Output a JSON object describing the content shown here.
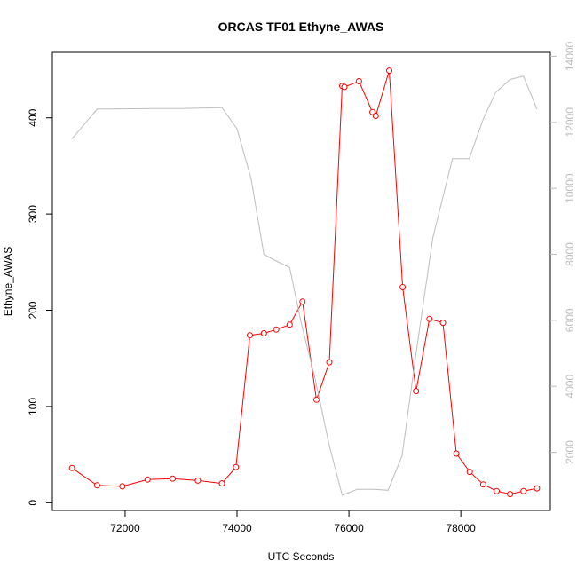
{
  "chart_data": {
    "type": "line",
    "title": "ORCAS TF01 Ethyne_AWAS",
    "xlabel": "UTC Seconds",
    "ylabel": "Ethyne_AWAS",
    "xlim": [
      70700,
      79600
    ],
    "ylim": [
      -8,
      468
    ],
    "y2lim": [
      240,
      14120
    ],
    "x_ticks": [
      72000,
      74000,
      76000,
      78000
    ],
    "x_tick_labels": [
      "72000",
      "74000",
      "76000",
      "78000"
    ],
    "y_ticks": [
      0,
      100,
      200,
      300,
      400
    ],
    "y_tick_labels": [
      "0",
      "100",
      "200",
      "300",
      "400"
    ],
    "y2_ticks": [
      2000,
      4000,
      6000,
      8000,
      10000,
      12000,
      14000
    ],
    "y2_tick_labels": [
      "2000",
      "4000",
      "6000",
      "8000",
      "10000",
      "12000",
      "14000"
    ],
    "grid": false,
    "series": [
      {
        "axis": "left",
        "color": "#ff0000",
        "marker": "open-circle",
        "x": [
          71050,
          71500,
          71950,
          72400,
          72850,
          73300,
          73730,
          73980,
          74230,
          74480,
          74700,
          74940,
          75170,
          75420,
          75650,
          75880,
          75920,
          76180,
          76420,
          76480,
          76720,
          76960,
          77200,
          77440,
          77680,
          77920,
          78160,
          78400,
          78640,
          78880,
          79120,
          79360
        ],
        "y": [
          36,
          18,
          17,
          24,
          25,
          23,
          20,
          37,
          174,
          176,
          180,
          185,
          209,
          107,
          146,
          433,
          432,
          438,
          406,
          402,
          449,
          224,
          116,
          191,
          187,
          51,
          32,
          19,
          12,
          9,
          12,
          15
        ]
      },
      {
        "axis": "right",
        "color": "#bdbdbd",
        "marker": "none",
        "x": [
          71050,
          71500,
          72000,
          72500,
          73000,
          73500,
          73730,
          74000,
          74250,
          74480,
          74700,
          74940,
          75150,
          75400,
          75650,
          75880,
          76150,
          76450,
          76700,
          76950,
          77200,
          77500,
          77850,
          78150,
          78400,
          78620,
          78880,
          79120,
          79360
        ],
        "y": [
          11500,
          12400,
          12410,
          12420,
          12420,
          12440,
          12450,
          11800,
          10300,
          8000,
          7800,
          7600,
          5900,
          4200,
          2200,
          700,
          880,
          880,
          850,
          1900,
          5000,
          8500,
          10900,
          10900,
          12100,
          12900,
          13300,
          13400,
          12400
        ]
      }
    ]
  }
}
